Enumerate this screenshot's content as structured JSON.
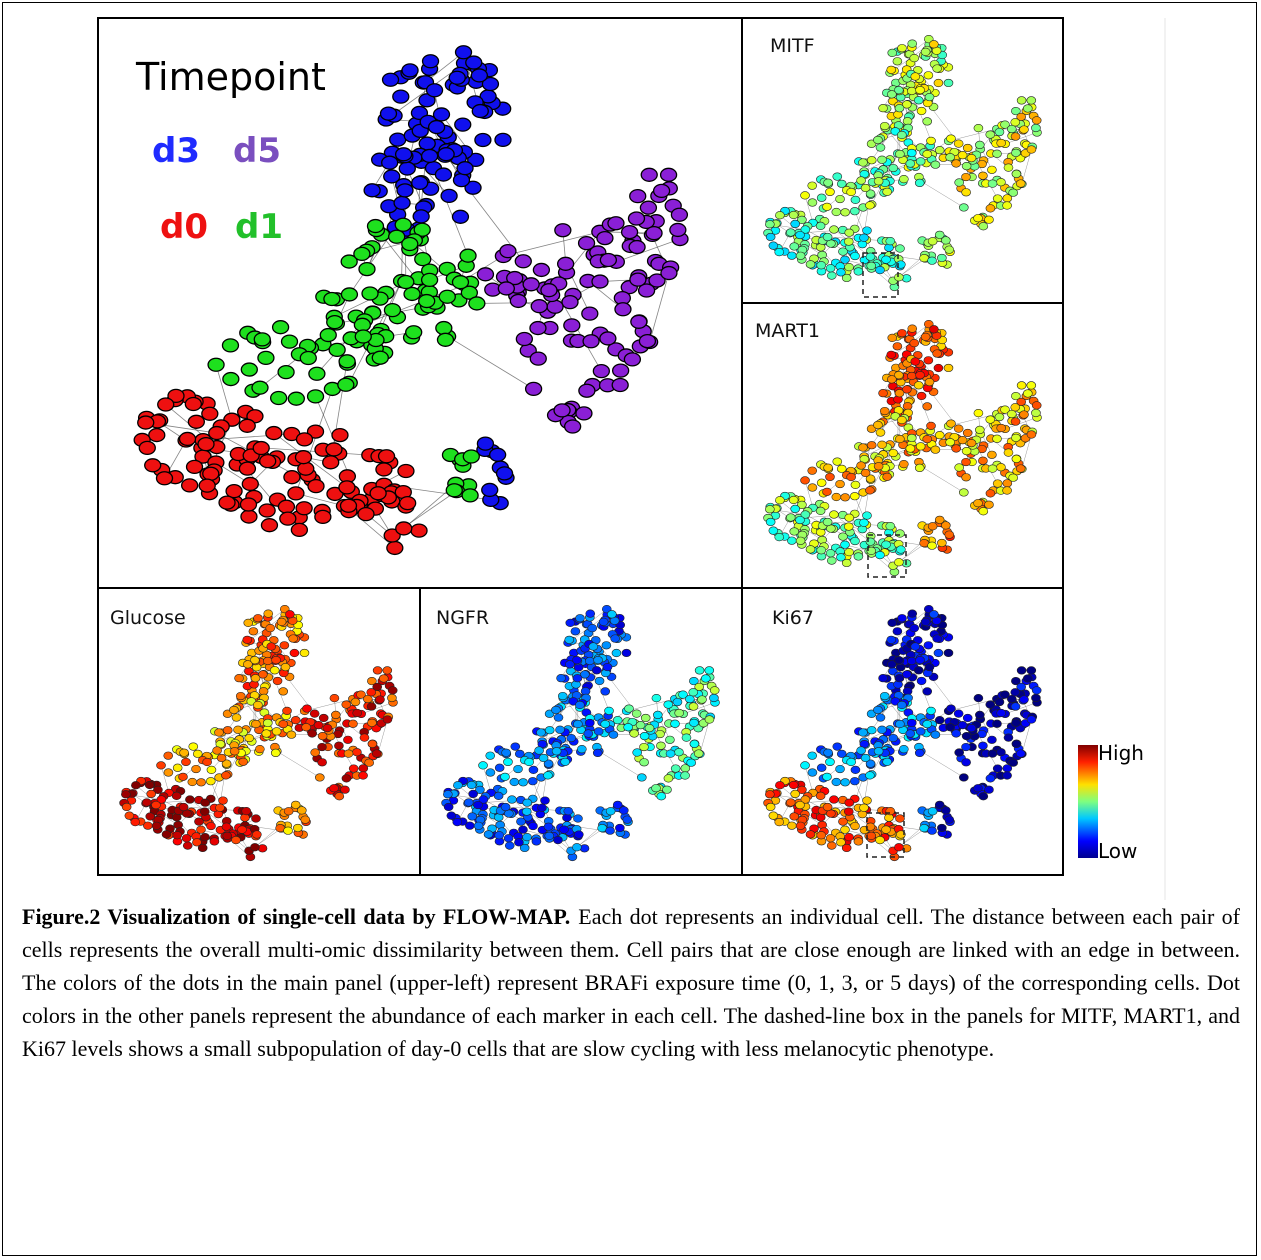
{
  "figure": {
    "main_panel": {
      "legend_title": "Timepoint",
      "labels": [
        "d3",
        "d5",
        "d0",
        "d1"
      ]
    },
    "panels": [
      {
        "title": "MITF"
      },
      {
        "title": "MART1"
      },
      {
        "title": "Glucose"
      },
      {
        "title": "NGFR"
      },
      {
        "title": "Ki67"
      }
    ],
    "colorbar": {
      "high": "High",
      "low": "Low"
    }
  },
  "caption": {
    "label": "Figure.2 Visualization of single-cell data by FLOW-MAP.",
    "text": "Each dot represents an individual cell. The distance between each pair of cells represents the overall multi-omic dissimilarity between them. Cell pairs that are close enough are linked with an edge in between. The colors of the dots in the main panel (upper-left) represent BRAFi exposure time (0, 1, 3, or 5 days) of the corresponding cells. Dot colors in the other panels represent the abundance of each marker in each cell. The dashed-line box in the panels for MITF, MART1, and Ki67 levels shows a small subpopulation of day-0 cells that are slow cycling with less melanocytic phenotype."
  }
}
